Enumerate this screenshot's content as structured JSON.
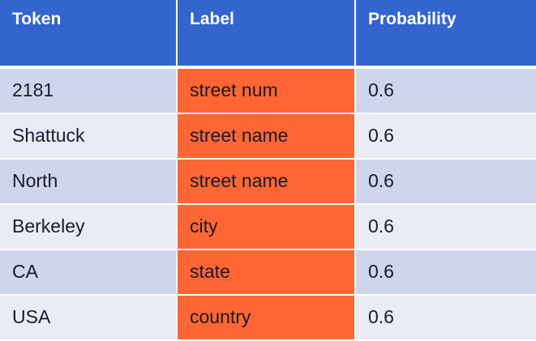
{
  "colors": {
    "header_bg": "#3366cc",
    "row_odd_bg": "#cfd5ea",
    "row_even_bg": "#e9ebf5",
    "label_column_bg": "#ff6633"
  },
  "table": {
    "headers": [
      "Token",
      "Label",
      "Probability"
    ],
    "rows": [
      {
        "token": "2181",
        "label": "street num",
        "probability": "0.6"
      },
      {
        "token": "Shattuck",
        "label": "street name",
        "probability": "0.6"
      },
      {
        "token": "North",
        "label": "street name",
        "probability": "0.6"
      },
      {
        "token": "Berkeley",
        "label": "city",
        "probability": "0.6"
      },
      {
        "token": "CA",
        "label": "state",
        "probability": "0.6"
      },
      {
        "token": "USA",
        "label": "country",
        "probability": "0.6"
      }
    ]
  }
}
